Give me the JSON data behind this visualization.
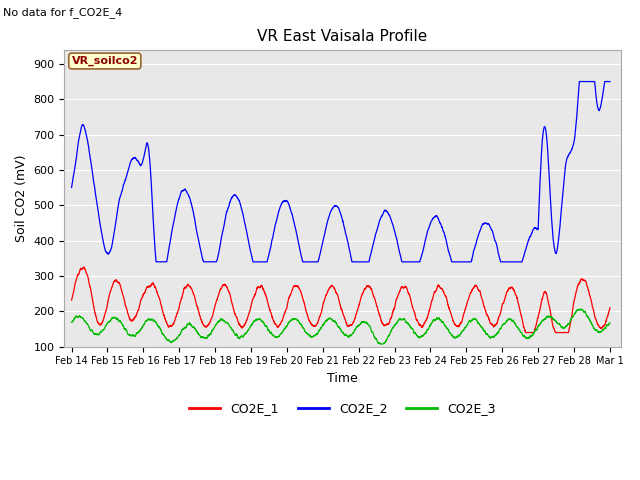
{
  "title": "VR East Vaisala Profile",
  "subtitle": "No data for f_CO2E_4",
  "ylabel": "Soil CO2 (mV)",
  "xlabel": "Time",
  "legend_label": "VR_soilco2",
  "ylim": [
    100,
    940
  ],
  "yticks": [
    100,
    200,
    300,
    400,
    500,
    600,
    700,
    800,
    900
  ],
  "series_labels": [
    "CO2E_1",
    "CO2E_2",
    "CO2E_3"
  ],
  "series_colors": [
    "#ff0000",
    "#0000ff",
    "#00bb00"
  ],
  "background_color": "#e8e8e8",
  "xtick_labels": [
    "Feb 14",
    "Feb 15",
    "Feb 16",
    "Feb 17",
    "Feb 18",
    "Feb 19",
    "Feb 20",
    "Feb 21",
    "Feb 22",
    "Feb 23",
    "Feb 24",
    "Feb 25",
    "Feb 26",
    "Feb 27",
    "Feb 28",
    "Mar 1"
  ],
  "xtick_positions": [
    0,
    1,
    2,
    3,
    4,
    5,
    6,
    7,
    8,
    9,
    10,
    11,
    12,
    13,
    14,
    15
  ]
}
